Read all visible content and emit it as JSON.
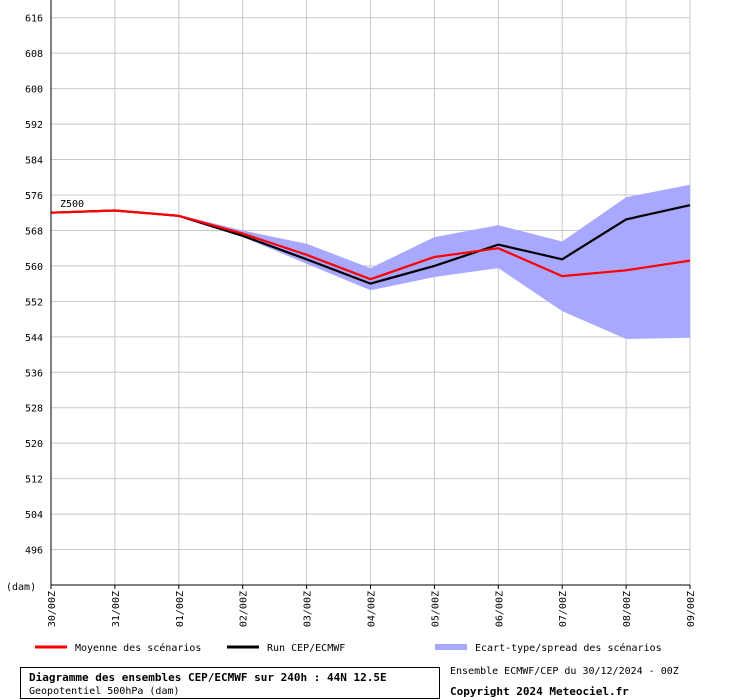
{
  "chart_data": {
    "type": "line",
    "x": [
      "30/00Z",
      "31/00Z",
      "01/00Z",
      "02/00Z",
      "03/00Z",
      "04/00Z",
      "05/00Z",
      "06/00Z",
      "07/00Z",
      "08/00Z",
      "09/00Z"
    ],
    "series": [
      {
        "name": "Moyenne des scénarios",
        "color": "#ff0000",
        "values": [
          572,
          572.5,
          571.3,
          567.3,
          562.5,
          557,
          562,
          564,
          557.7,
          559,
          561.2
        ]
      },
      {
        "name": "Run CEP/ECMWF",
        "color": "#000000",
        "values": [
          572,
          572.5,
          571.3,
          566.8,
          561.5,
          556,
          560,
          564.8,
          561.5,
          570.5,
          573.7
        ]
      },
      {
        "name": "Ecart-type/spread des scénarios",
        "color": "#a8a8ff",
        "kind": "band",
        "upper": [
          572,
          572.5,
          571.5,
          568,
          565,
          559.5,
          566.5,
          569.2,
          565.5,
          575.5,
          578.3
        ],
        "lower": [
          572,
          572.5,
          571,
          566.5,
          560.5,
          554.5,
          557.5,
          559.5,
          549.8,
          543.5,
          543.8
        ]
      }
    ],
    "ylim": [
      488,
      620
    ],
    "yticks": [
      496,
      504,
      512,
      520,
      528,
      536,
      544,
      552,
      560,
      568,
      576,
      584,
      592,
      600,
      608,
      616
    ],
    "ylabel": "(dam)",
    "series_label": "Z500",
    "grid": true,
    "legend_position": "bottom"
  },
  "footer": {
    "title": "Diagramme des ensembles CEP/ECMWF sur 240h : 44N 12.5E",
    "subtitle": "Geopotentiel 500hPa (dam)",
    "ensemble": "Ensemble ECMWF/CEP du 30/12/2024 - 00Z",
    "copyright": "Copyright 2024 Meteociel.fr"
  }
}
